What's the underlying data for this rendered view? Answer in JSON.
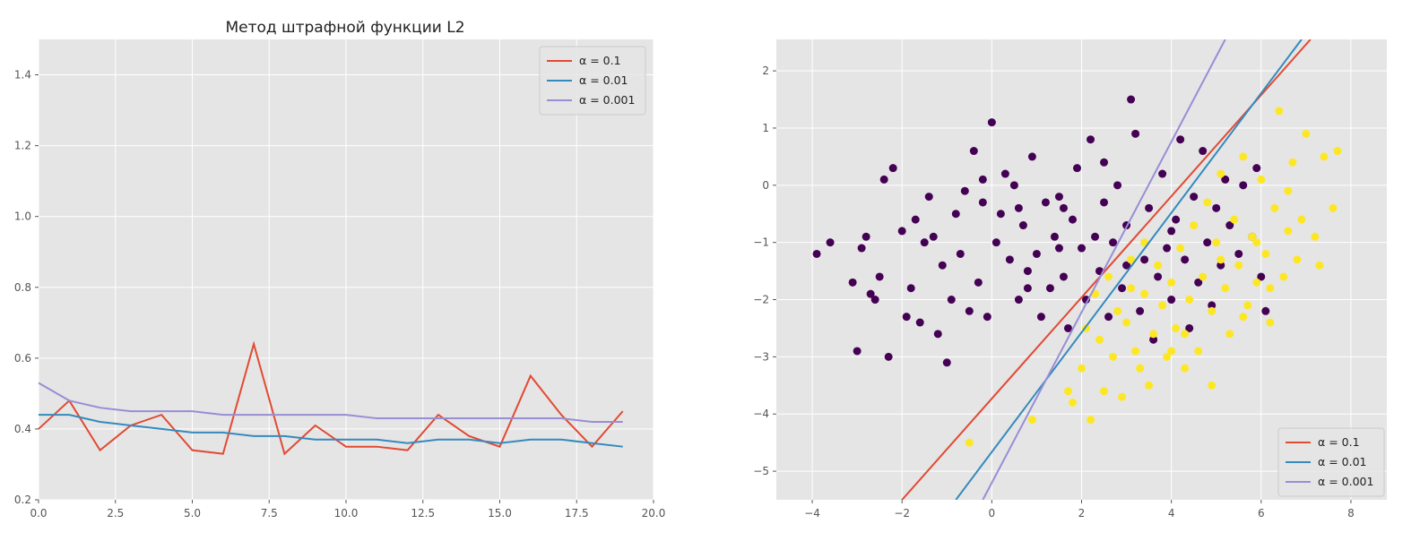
{
  "chart_data": [
    {
      "type": "line",
      "title": "Метод штрафной функции L2",
      "xlabel": "",
      "ylabel": "",
      "xlim": [
        0,
        20
      ],
      "ylim": [
        0.2,
        1.5
      ],
      "xticks": [
        0.0,
        2.5,
        5.0,
        7.5,
        10.0,
        12.5,
        15.0,
        17.5,
        20.0
      ],
      "xtick_labels": [
        "0.0",
        "2.5",
        "5.0",
        "7.5",
        "10.0",
        "12.5",
        "15.0",
        "17.5",
        "20.0"
      ],
      "yticks": [
        0.2,
        0.4,
        0.6,
        0.8,
        1.0,
        1.2,
        1.4
      ],
      "ytick_labels": [
        "0.2",
        "0.4",
        "0.6",
        "0.8",
        "1.0",
        "1.2",
        "1.4"
      ],
      "grid": true,
      "legend": "top-right",
      "x": [
        0,
        1,
        2,
        3,
        4,
        5,
        6,
        7,
        8,
        9,
        10,
        11,
        12,
        13,
        14,
        15,
        16,
        17,
        18,
        19
      ],
      "series": [
        {
          "name": "α = 0.1",
          "color": "#E24A33",
          "values": [
            0.4,
            0.48,
            0.34,
            0.41,
            0.44,
            0.34,
            0.33,
            0.64,
            0.33,
            0.41,
            0.35,
            0.35,
            0.34,
            0.44,
            0.38,
            0.35,
            0.55,
            0.44,
            0.35,
            0.45
          ]
        },
        {
          "name": "α = 0.01",
          "color": "#348ABD",
          "values": [
            0.44,
            0.44,
            0.42,
            0.41,
            0.4,
            0.39,
            0.39,
            0.38,
            0.38,
            0.37,
            0.37,
            0.37,
            0.36,
            0.37,
            0.37,
            0.36,
            0.37,
            0.37,
            0.36,
            0.35
          ]
        },
        {
          "name": "α = 0.001",
          "color": "#988ED5",
          "values": [
            0.53,
            0.48,
            0.46,
            0.45,
            0.45,
            0.45,
            0.44,
            0.44,
            0.44,
            0.44,
            0.44,
            0.43,
            0.43,
            0.43,
            0.43,
            0.43,
            0.43,
            0.43,
            0.42,
            0.42
          ]
        }
      ]
    },
    {
      "type": "scatter",
      "title": "",
      "xlabel": "",
      "ylabel": "",
      "xlim": [
        -4.8,
        8.8
      ],
      "ylim": [
        -5.5,
        2.55
      ],
      "xticks": [
        -4,
        -2,
        0,
        2,
        4,
        6,
        8
      ],
      "xtick_labels": [
        "−4",
        "−2",
        "0",
        "2",
        "4",
        "6",
        "8"
      ],
      "yticks": [
        -5,
        -4,
        -3,
        -2,
        -1,
        0,
        1,
        2
      ],
      "ytick_labels": [
        "−5",
        "−4",
        "−3",
        "−2",
        "−1",
        "0",
        "1",
        "2"
      ],
      "grid": true,
      "legend": "bottom-right",
      "class_colors": {
        "class_0": "#440154",
        "class_1": "#FDE725"
      },
      "points_class_0": [
        [
          -3.9,
          -1.2
        ],
        [
          -3.6,
          -1.0
        ],
        [
          -3.1,
          -1.7
        ],
        [
          -3.0,
          -2.9
        ],
        [
          -2.9,
          -1.1
        ],
        [
          -2.8,
          -0.9
        ],
        [
          -2.7,
          -1.9
        ],
        [
          -2.6,
          -2.0
        ],
        [
          -2.5,
          -1.6
        ],
        [
          -2.4,
          0.1
        ],
        [
          -2.3,
          -3.0
        ],
        [
          -2.2,
          0.3
        ],
        [
          -2.0,
          -0.8
        ],
        [
          -1.9,
          -2.3
        ],
        [
          -1.8,
          -1.8
        ],
        [
          -1.7,
          -0.6
        ],
        [
          -1.6,
          -2.4
        ],
        [
          -1.5,
          -1.0
        ],
        [
          -1.4,
          -0.2
        ],
        [
          -1.3,
          -0.9
        ],
        [
          -1.2,
          -2.6
        ],
        [
          -1.1,
          -1.4
        ],
        [
          -1.0,
          -3.1
        ],
        [
          -0.9,
          -2.0
        ],
        [
          -0.8,
          -0.5
        ],
        [
          -0.7,
          -1.2
        ],
        [
          -0.6,
          -0.1
        ],
        [
          -0.5,
          -2.2
        ],
        [
          -0.4,
          0.6
        ],
        [
          -0.3,
          -1.7
        ],
        [
          -0.2,
          0.1
        ],
        [
          -0.1,
          -2.3
        ],
        [
          0.0,
          1.1
        ],
        [
          0.1,
          -1.0
        ],
        [
          0.2,
          -0.5
        ],
        [
          0.3,
          0.2
        ],
        [
          0.4,
          -1.3
        ],
        [
          0.5,
          0.0
        ],
        [
          0.6,
          -2.0
        ],
        [
          0.7,
          -0.7
        ],
        [
          0.8,
          -1.5
        ],
        [
          0.9,
          0.5
        ],
        [
          1.0,
          -1.2
        ],
        [
          1.1,
          -2.3
        ],
        [
          1.2,
          -0.3
        ],
        [
          1.3,
          -1.8
        ],
        [
          1.4,
          -0.9
        ],
        [
          1.5,
          -0.2
        ],
        [
          1.6,
          -1.6
        ],
        [
          1.7,
          -2.5
        ],
        [
          1.8,
          -0.6
        ],
        [
          1.9,
          0.3
        ],
        [
          2.0,
          -1.1
        ],
        [
          2.1,
          -2.0
        ],
        [
          2.2,
          0.8
        ],
        [
          2.3,
          -0.9
        ],
        [
          2.4,
          -1.5
        ],
        [
          2.5,
          -0.3
        ],
        [
          2.6,
          -2.3
        ],
        [
          2.7,
          -1.0
        ],
        [
          2.8,
          0.0
        ],
        [
          2.9,
          -1.8
        ],
        [
          3.0,
          -0.7
        ],
        [
          3.1,
          1.5
        ],
        [
          3.2,
          0.9
        ],
        [
          3.3,
          -2.2
        ],
        [
          3.4,
          -1.3
        ],
        [
          3.5,
          -0.4
        ],
        [
          3.6,
          -2.7
        ],
        [
          3.7,
          -1.6
        ],
        [
          3.8,
          0.2
        ],
        [
          3.9,
          -1.1
        ],
        [
          4.0,
          -2.0
        ],
        [
          4.1,
          -0.6
        ],
        [
          4.2,
          0.8
        ],
        [
          4.3,
          -1.3
        ],
        [
          4.4,
          -2.5
        ],
        [
          4.5,
          -0.2
        ],
        [
          4.6,
          -1.7
        ],
        [
          4.7,
          0.6
        ],
        [
          4.8,
          -1.0
        ],
        [
          4.9,
          -2.1
        ],
        [
          5.0,
          -0.4
        ],
        [
          5.1,
          -1.4
        ],
        [
          5.2,
          0.1
        ],
        [
          5.3,
          -0.7
        ],
        [
          5.5,
          -1.2
        ],
        [
          5.6,
          0.0
        ],
        [
          5.8,
          -0.9
        ],
        [
          5.9,
          0.3
        ],
        [
          6.0,
          -1.6
        ],
        [
          6.1,
          -2.2
        ],
        [
          0.6,
          -0.4
        ],
        [
          -0.2,
          -0.3
        ],
        [
          1.5,
          -1.1
        ],
        [
          2.5,
          0.4
        ],
        [
          3.0,
          -1.4
        ],
        [
          4.0,
          -0.8
        ],
        [
          0.8,
          -1.8
        ],
        [
          1.6,
          -0.4
        ]
      ],
      "points_class_1": [
        [
          -0.5,
          -4.5
        ],
        [
          0.9,
          -4.1
        ],
        [
          1.7,
          -3.6
        ],
        [
          1.8,
          -3.8
        ],
        [
          2.0,
          -3.2
        ],
        [
          2.1,
          -2.5
        ],
        [
          2.2,
          -4.1
        ],
        [
          2.3,
          -1.9
        ],
        [
          2.4,
          -2.7
        ],
        [
          2.5,
          -3.6
        ],
        [
          2.6,
          -1.6
        ],
        [
          2.7,
          -3.0
        ],
        [
          2.8,
          -2.2
        ],
        [
          2.9,
          -3.7
        ],
        [
          3.0,
          -2.4
        ],
        [
          3.1,
          -1.3
        ],
        [
          3.2,
          -2.9
        ],
        [
          3.3,
          -3.2
        ],
        [
          3.4,
          -1.9
        ],
        [
          3.5,
          -3.5
        ],
        [
          3.6,
          -2.6
        ],
        [
          3.7,
          -1.4
        ],
        [
          3.8,
          -2.1
        ],
        [
          3.9,
          -3.0
        ],
        [
          4.0,
          -1.7
        ],
        [
          4.1,
          -2.5
        ],
        [
          4.2,
          -1.1
        ],
        [
          4.3,
          -3.2
        ],
        [
          4.4,
          -2.0
        ],
        [
          4.5,
          -0.7
        ],
        [
          4.6,
          -2.9
        ],
        [
          4.7,
          -1.6
        ],
        [
          4.8,
          -0.3
        ],
        [
          4.9,
          -2.2
        ],
        [
          5.0,
          -1.0
        ],
        [
          5.1,
          0.2
        ],
        [
          5.2,
          -1.8
        ],
        [
          5.3,
          -2.6
        ],
        [
          5.4,
          -0.6
        ],
        [
          5.5,
          -1.4
        ],
        [
          5.6,
          0.5
        ],
        [
          5.7,
          -2.1
        ],
        [
          5.8,
          -0.9
        ],
        [
          5.9,
          -1.7
        ],
        [
          6.0,
          0.1
        ],
        [
          6.1,
          -1.2
        ],
        [
          6.2,
          -2.4
        ],
        [
          6.3,
          -0.4
        ],
        [
          6.4,
          1.3
        ],
        [
          6.5,
          -1.6
        ],
        [
          6.6,
          -0.8
        ],
        [
          6.7,
          0.4
        ],
        [
          6.8,
          -1.3
        ],
        [
          6.9,
          -0.6
        ],
        [
          7.0,
          0.9
        ],
        [
          7.2,
          -0.9
        ],
        [
          7.3,
          -1.4
        ],
        [
          7.4,
          0.5
        ],
        [
          7.6,
          -0.4
        ],
        [
          7.7,
          0.6
        ],
        [
          4.9,
          -3.5
        ],
        [
          5.6,
          -2.3
        ],
        [
          6.2,
          -1.8
        ],
        [
          3.4,
          -1.0
        ],
        [
          4.3,
          -2.6
        ],
        [
          5.1,
          -1.3
        ],
        [
          5.9,
          -1.0
        ],
        [
          6.6,
          -0.1
        ],
        [
          4.0,
          -2.9
        ],
        [
          3.1,
          -1.8
        ]
      ],
      "lines": [
        {
          "name": "α = 0.1",
          "color": "#E24A33",
          "x": [
            -2.0,
            7.1
          ],
          "y": [
            -5.5,
            2.55
          ]
        },
        {
          "name": "α = 0.01",
          "color": "#348ABD",
          "x": [
            -0.8,
            6.9
          ],
          "y": [
            -5.5,
            2.55
          ]
        },
        {
          "name": "α = 0.001",
          "color": "#988ED5",
          "x": [
            -0.2,
            5.2
          ],
          "y": [
            -5.5,
            2.55
          ]
        }
      ]
    }
  ]
}
